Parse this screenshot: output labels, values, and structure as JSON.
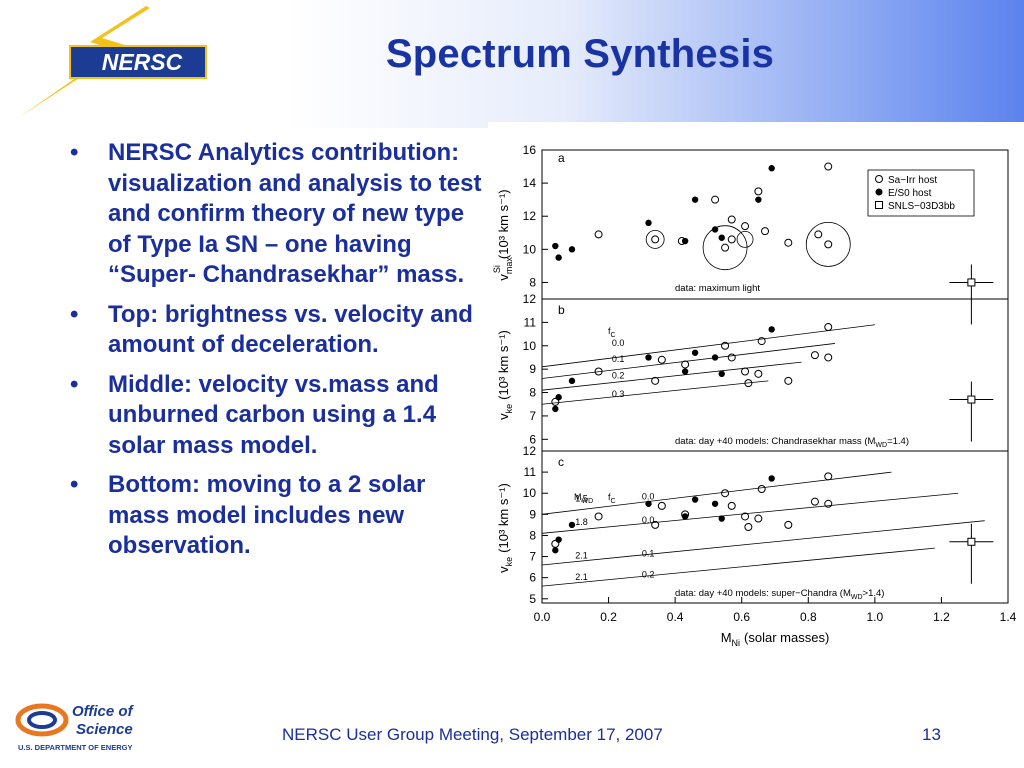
{
  "header": {
    "logo_text": "NERSC",
    "title": "Spectrum Synthesis"
  },
  "bullets": [
    "NERSC Analytics contribution: visualization and analysis to test and confirm theory of new type of Type Ia SN – one having “Super- Chandrasekhar” mass.",
    "Top: brightness vs. velocity and amount of deceleration.",
    "Middle: velocity vs.mass and unburned carbon using a 1.4 solar mass model.",
    "Bottom: moving to a 2 solar mass model includes new observation."
  ],
  "figure": {
    "panels": [
      {
        "letter": "a",
        "ylabel_main": "v",
        "ylabel_sub": "max",
        "ylabel_sup": "Si",
        "ylabel_units": "(10³ km s⁻¹)",
        "ylim": [
          7,
          16
        ],
        "yticks": [
          "8",
          "10",
          "12",
          "14",
          "16"
        ],
        "note": "data: maximum light",
        "legend": [
          "Sa−Irr host",
          "E/S0 host",
          "SNLS−03D3bb"
        ]
      },
      {
        "letter": "b",
        "ylabel_main": "v",
        "ylabel_sub": "ke",
        "ylabel_units": "(10³ km s⁻¹)",
        "ylim": [
          5.5,
          12
        ],
        "yticks": [
          "6",
          "7",
          "8",
          "9",
          "10",
          "11",
          "12"
        ],
        "note": "data: day +40   models: Chandrasekhar mass (M",
        "note_sub": "WD",
        "note_end": "=1.4)",
        "fc_header": "f",
        "fc_header_sub": "C",
        "fc_labels": [
          "0.0",
          "0.1",
          "0.2",
          "0.3"
        ]
      },
      {
        "letter": "c",
        "ylabel_main": "v",
        "ylabel_sub": "ke",
        "ylabel_units": "(10³ km s⁻¹)",
        "ylim": [
          4.8,
          12
        ],
        "yticks": [
          "5",
          "6",
          "7",
          "8",
          "9",
          "10",
          "11",
          "12"
        ],
        "note": "data: day +40   models: super−Chandra (M",
        "note_sub": "WD",
        "note_end": ">1.4)",
        "mwd_header": "M",
        "mwd_header_sub": "WD",
        "fc_header": "f",
        "fc_header_sub": "C",
        "model_labels": [
          [
            "1.5",
            "0.0"
          ],
          [
            "1.8",
            "0.0"
          ],
          [
            "2.1",
            "0.1"
          ],
          [
            "2.1",
            "0.2"
          ]
        ]
      }
    ],
    "xlabel_main": "M",
    "xlabel_sub": "Ni",
    "xlabel_units": "(solar masses)",
    "xticks": [
      "0.0",
      "0.2",
      "0.4",
      "0.6",
      "0.8",
      "1.0",
      "1.2",
      "1.4"
    ]
  },
  "chart_data": [
    {
      "type": "scatter",
      "panel": "a",
      "xlabel": "MNi (solar masses)",
      "ylabel": "vSimax (10³ km s⁻¹)",
      "xlim": [
        0,
        1.4
      ],
      "ylim": [
        7,
        16
      ],
      "series": [
        {
          "name": "Sa−Irr host",
          "x": [
            0.17,
            0.34,
            0.42,
            0.55,
            0.57,
            0.61,
            0.67,
            0.74,
            0.83,
            0.86,
            0.52,
            0.65,
            0.57,
            0.86
          ],
          "y": [
            10.9,
            10.6,
            10.5,
            10.1,
            10.6,
            11.4,
            11.1,
            10.4,
            10.9,
            10.3,
            13.0,
            13.5,
            11.8,
            15.0
          ]
        },
        {
          "name": "E/S0 host",
          "x": [
            0.04,
            0.05,
            0.09,
            0.32,
            0.43,
            0.46,
            0.52,
            0.54,
            0.69,
            0.65
          ],
          "y": [
            10.2,
            9.5,
            10.0,
            11.6,
            10.5,
            13.0,
            11.2,
            10.7,
            14.9,
            13.0
          ]
        },
        {
          "name": "SNLS−03D3bb",
          "x": [
            1.29
          ],
          "y": [
            8.0
          ]
        }
      ]
    },
    {
      "type": "scatter",
      "panel": "b",
      "xlabel": "MNi (solar masses)",
      "ylabel": "vke (10³ km s⁻¹)",
      "xlim": [
        0,
        1.4
      ],
      "ylim": [
        5.5,
        12
      ],
      "series": [
        {
          "name": "Sa−Irr host",
          "x": [
            0.04,
            0.17,
            0.34,
            0.36,
            0.43,
            0.55,
            0.57,
            0.61,
            0.62,
            0.65,
            0.66,
            0.74,
            0.82,
            0.86,
            0.86
          ],
          "y": [
            7.6,
            8.9,
            8.5,
            9.4,
            9.2,
            10.0,
            9.5,
            8.9,
            8.4,
            8.8,
            10.2,
            8.5,
            9.6,
            9.5,
            10.8
          ]
        },
        {
          "name": "E/S0 host",
          "x": [
            0.04,
            0.05,
            0.09,
            0.32,
            0.43,
            0.46,
            0.52,
            0.54,
            0.69
          ],
          "y": [
            7.3,
            7.8,
            8.5,
            9.5,
            8.9,
            9.7,
            9.5,
            8.8,
            10.7
          ]
        },
        {
          "name": "SNLS−03D3bb",
          "x": [
            1.29
          ],
          "y": [
            7.7
          ]
        }
      ]
    },
    {
      "type": "scatter",
      "panel": "c",
      "xlabel": "MNi (solar masses)",
      "ylabel": "vke (10³ km s⁻¹)",
      "xlim": [
        0,
        1.4
      ],
      "ylim": [
        4.8,
        12
      ],
      "series": [
        {
          "name": "Sa−Irr host",
          "x": [
            0.04,
            0.17,
            0.34,
            0.36,
            0.43,
            0.55,
            0.57,
            0.61,
            0.62,
            0.65,
            0.66,
            0.74,
            0.82,
            0.86,
            0.86
          ],
          "y": [
            7.6,
            8.9,
            8.5,
            9.4,
            9.0,
            10.0,
            9.4,
            8.9,
            8.4,
            8.8,
            10.2,
            8.5,
            9.6,
            9.5,
            10.8
          ]
        },
        {
          "name": "E/S0 host",
          "x": [
            0.04,
            0.05,
            0.09,
            0.32,
            0.43,
            0.46,
            0.52,
            0.54,
            0.69
          ],
          "y": [
            7.3,
            7.8,
            8.5,
            9.5,
            8.9,
            9.7,
            9.5,
            8.8,
            10.7
          ]
        },
        {
          "name": "SNLS−03D3bb",
          "x": [
            1.29
          ],
          "y": [
            7.7
          ]
        }
      ]
    }
  ],
  "footer": {
    "logo_line1": "Office of",
    "logo_line2": "Science",
    "logo_line3": "U.S. DEPARTMENT OF ENERGY",
    "text": "NERSC User Group Meeting, September 17, 2007",
    "page": "13"
  },
  "colors": {
    "title": "#1a33a3",
    "text": "#1a2f9c",
    "header_gradient_end": "#5b83ee",
    "nersc_gold": "#f2c21b",
    "nersc_blue": "#1c3b93"
  }
}
